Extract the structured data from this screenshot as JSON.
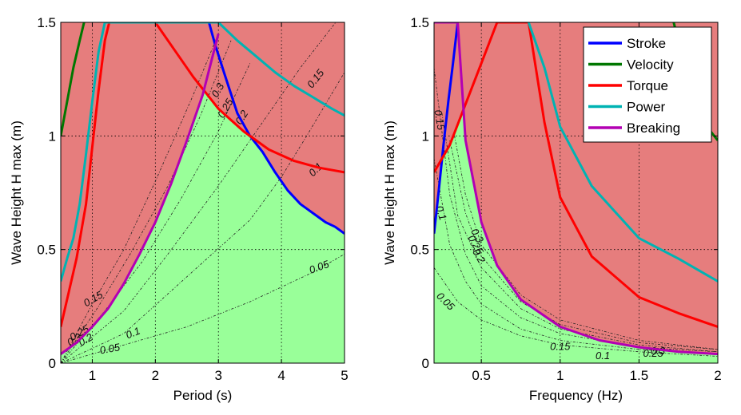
{
  "chart_data": [
    {
      "type": "line",
      "xlabel": "Period (s)",
      "ylabel": "Wave Height H max (m)",
      "xlim": [
        0.5,
        5
      ],
      "ylim": [
        0,
        1.5
      ],
      "xticks": [
        1,
        2,
        3,
        4,
        5
      ],
      "yticks": [
        0,
        0.5,
        1,
        1.5
      ],
      "yticklabels": [
        "0",
        "0.5",
        "1",
        "1.5"
      ],
      "grid": true,
      "regions": {
        "feasible_color": "#99ff99",
        "infeasible_color": "#e67d7d"
      },
      "series": [
        {
          "name": "Stroke",
          "color": "#0000ff",
          "x": [
            2.85,
            2.95,
            3.1,
            3.3,
            3.5,
            3.7,
            3.9,
            4.1,
            4.3,
            4.5,
            4.7,
            4.85,
            5.0
          ],
          "y": [
            1.5,
            1.4,
            1.27,
            1.1,
            1.0,
            0.93,
            0.84,
            0.76,
            0.7,
            0.66,
            0.62,
            0.6,
            0.57
          ]
        },
        {
          "name": "Velocity",
          "color": "#007700",
          "x": [
            0.5,
            0.6,
            0.7,
            0.8,
            0.87
          ],
          "y": [
            1.0,
            1.15,
            1.3,
            1.42,
            1.5
          ]
        },
        {
          "name": "Torque",
          "color": "#ff0000",
          "x": [
            0.5,
            0.6,
            0.75,
            0.9,
            1.0,
            1.1,
            1.2,
            1.27,
            1.5,
            2.0,
            2.3,
            2.6,
            3.0,
            3.4,
            3.8,
            4.2,
            4.6,
            5.0
          ],
          "y": [
            0.16,
            0.28,
            0.46,
            0.7,
            0.95,
            1.2,
            1.42,
            1.5,
            1.5,
            1.5,
            1.38,
            1.26,
            1.12,
            1.02,
            0.94,
            0.89,
            0.86,
            0.84
          ]
        },
        {
          "name": "Power",
          "color": "#00b3b3",
          "x": [
            0.5,
            0.6,
            0.7,
            0.8,
            0.9,
            1.0,
            1.1,
            1.2,
            3.0,
            3.3,
            3.6,
            3.9,
            4.2,
            4.5,
            4.8,
            5.0
          ],
          "y": [
            0.36,
            0.46,
            0.55,
            0.7,
            0.92,
            1.15,
            1.37,
            1.5,
            1.5,
            1.42,
            1.35,
            1.28,
            1.22,
            1.17,
            1.12,
            1.09
          ]
        },
        {
          "name": "Breaking",
          "color": "#b300b3",
          "x": [
            0.5,
            0.75,
            1.0,
            1.25,
            1.5,
            1.75,
            2.0,
            2.25,
            2.5,
            2.75,
            3.0
          ],
          "y": [
            0.04,
            0.09,
            0.16,
            0.24,
            0.35,
            0.48,
            0.62,
            0.79,
            0.98,
            1.18,
            1.45
          ]
        }
      ],
      "contours": [
        {
          "label": "0.05",
          "x": [
            0.5,
            1.5,
            2.5,
            3.5,
            4.5,
            5.0
          ],
          "y": [
            0.0,
            0.08,
            0.16,
            0.27,
            0.4,
            0.48
          ],
          "label_at": [
            1.28,
            0.06
          ],
          "label_rot": -10
        },
        {
          "label": "0.1",
          "x": [
            0.5,
            1.5,
            2.5,
            3.5,
            4.0,
            4.4,
            5.0
          ],
          "y": [
            0.0,
            0.13,
            0.38,
            0.63,
            0.82,
            1.0,
            1.28
          ],
          "label_at": [
            1.65,
            0.13
          ],
          "label_rot": -22
        },
        {
          "label": "0.15",
          "x": [
            0.5,
            1.5,
            2.2,
            3.0,
            3.7,
            4.3,
            5.0
          ],
          "y": [
            0.0,
            0.23,
            0.48,
            0.78,
            1.06,
            1.3,
            1.55
          ],
          "label_at": [
            1.02,
            0.28
          ],
          "label_rot": -30
        },
        {
          "label": "0.2",
          "x": [
            0.5,
            1.2,
            1.8,
            2.4,
            3.0,
            3.5
          ],
          "y": [
            0.0,
            0.23,
            0.45,
            0.72,
            1.02,
            1.32
          ],
          "label_at": [
            0.9,
            0.1
          ],
          "label_rot": -30
        },
        {
          "label": "0.25",
          "x": [
            0.5,
            1.1,
            1.6,
            2.2,
            2.7,
            3.2
          ],
          "y": [
            0.0,
            0.25,
            0.48,
            0.78,
            1.08,
            1.42
          ],
          "label_at": [
            0.8,
            0.13
          ],
          "label_rot": -30
        },
        {
          "label": "0.3",
          "x": [
            0.5,
            1.0,
            1.5,
            2.0,
            2.6,
            3.0
          ],
          "y": [
            0.0,
            0.26,
            0.5,
            0.8,
            1.18,
            1.45
          ],
          "label_at": [
            0.72,
            0.1
          ],
          "label_rot": -30
        }
      ],
      "contour_extra_labels": [
        {
          "text": "0.15",
          "at": [
            4.55,
            1.25
          ],
          "rot": -52
        },
        {
          "text": "0.1",
          "at": [
            4.55,
            0.85
          ],
          "rot": -45
        },
        {
          "text": "0.05",
          "at": [
            4.6,
            0.42
          ],
          "rot": -20
        },
        {
          "text": "0.3",
          "at": [
            3.0,
            1.2
          ],
          "rot": -60
        },
        {
          "text": "0.25",
          "at": [
            3.12,
            1.12
          ],
          "rot": -60
        },
        {
          "text": "0.2",
          "at": [
            3.38,
            1.08
          ],
          "rot": -58
        }
      ]
    },
    {
      "type": "line",
      "xlabel": "Frequency (Hz)",
      "ylabel": "Wave Height H max (m)",
      "xlim": [
        0.2,
        2
      ],
      "ylim": [
        0,
        1.5
      ],
      "xticks": [
        0.5,
        1,
        1.5,
        2
      ],
      "yticks": [
        0,
        0.5,
        1,
        1.5
      ],
      "yticklabels": [
        "0",
        "0.5",
        "1",
        "1.5"
      ],
      "grid": true,
      "legend": "top-right",
      "regions": {
        "feasible_color": "#99ff99",
        "infeasible_color": "#e67d7d"
      },
      "series": [
        {
          "name": "Stroke",
          "color": "#0000ff",
          "x": [
            0.2,
            0.23,
            0.26,
            0.29,
            0.32,
            0.35
          ],
          "y": [
            0.57,
            0.76,
            0.96,
            1.15,
            1.32,
            1.5
          ]
        },
        {
          "name": "Velocity",
          "color": "#007700",
          "x": [
            1.72,
            1.82,
            1.92,
            2.0
          ],
          "y": [
            1.5,
            1.22,
            1.05,
            0.98
          ]
        },
        {
          "name": "Torque",
          "color": "#ff0000",
          "x": [
            0.2,
            0.3,
            0.4,
            0.5,
            0.6,
            0.65,
            0.8,
            0.9,
            1.0,
            1.2,
            1.5,
            1.75,
            2.0
          ],
          "y": [
            0.84,
            0.96,
            1.14,
            1.32,
            1.5,
            1.5,
            1.5,
            1.06,
            0.73,
            0.47,
            0.29,
            0.22,
            0.16
          ]
        },
        {
          "name": "Power",
          "color": "#00b3b3",
          "x": [
            0.8,
            0.9,
            1.0,
            1.2,
            1.5,
            1.75,
            2.0
          ],
          "y": [
            1.5,
            1.3,
            1.04,
            0.78,
            0.55,
            0.46,
            0.36
          ]
        },
        {
          "name": "Breaking",
          "color": "#b300b3",
          "x": [
            0.2,
            0.3,
            0.35,
            0.4,
            0.5,
            0.6,
            0.75,
            1.0,
            1.25,
            1.5,
            1.75,
            2.0
          ],
          "y": [
            1.5,
            1.5,
            1.5,
            0.98,
            0.62,
            0.43,
            0.28,
            0.16,
            0.1,
            0.07,
            0.05,
            0.04
          ]
        }
      ],
      "contours": [
        {
          "label": "0.05",
          "x": [
            0.2,
            0.35,
            0.5,
            0.75,
            1.0,
            1.5,
            2.0
          ],
          "y": [
            0.42,
            0.27,
            0.19,
            0.12,
            0.08,
            0.05,
            0.03
          ],
          "label_at": [
            0.27,
            0.27
          ],
          "label_rot": 45
        },
        {
          "label": "0.1",
          "x": [
            0.2,
            0.3,
            0.4,
            0.5,
            0.75,
            1.0,
            1.5,
            2.0
          ],
          "y": [
            0.9,
            0.52,
            0.36,
            0.26,
            0.15,
            0.1,
            0.06,
            0.04
          ],
          "label_at": [
            1.27,
            0.03
          ],
          "label_rot": 0
        },
        {
          "label": "0.15",
          "x": [
            0.2,
            0.3,
            0.4,
            0.5,
            0.75,
            1.0,
            1.5,
            2.0
          ],
          "y": [
            1.3,
            0.74,
            0.48,
            0.34,
            0.2,
            0.13,
            0.07,
            0.05
          ],
          "label_at": [
            1.0,
            0.07
          ],
          "label_rot": 0
        },
        {
          "label": "0.2",
          "x": [
            0.25,
            0.35,
            0.5,
            0.75,
            1.0,
            1.5,
            2.0
          ],
          "y": [
            1.1,
            0.65,
            0.42,
            0.24,
            0.15,
            0.08,
            0.05
          ],
          "label_at": [
            0.48,
            0.47
          ],
          "label_rot": 60
        },
        {
          "label": "0.25",
          "x": [
            0.3,
            0.4,
            0.5,
            0.75,
            1.0,
            1.5,
            2.0
          ],
          "y": [
            0.98,
            0.66,
            0.47,
            0.27,
            0.17,
            0.09,
            0.06
          ],
          "label_at": [
            0.46,
            0.52
          ],
          "label_rot": 60
        },
        {
          "label": "0.3",
          "x": [
            0.33,
            0.4,
            0.5,
            0.75,
            1.0,
            1.5,
            2.0
          ],
          "y": [
            1.0,
            0.74,
            0.52,
            0.3,
            0.19,
            0.1,
            0.06
          ],
          "label_at": [
            0.47,
            0.56
          ],
          "label_rot": 60
        }
      ],
      "contour_extra_labels": [
        {
          "text": "0.15",
          "at": [
            0.23,
            1.07
          ],
          "rot": 80
        },
        {
          "text": "0.1",
          "at": [
            0.24,
            0.66
          ],
          "rot": 70
        },
        {
          "text": "0.25",
          "at": [
            1.59,
            0.04
          ],
          "rot": 0
        },
        {
          "text": "0.3",
          "at": [
            1.62,
            0.05
          ],
          "rot": 0
        }
      ]
    }
  ]
}
